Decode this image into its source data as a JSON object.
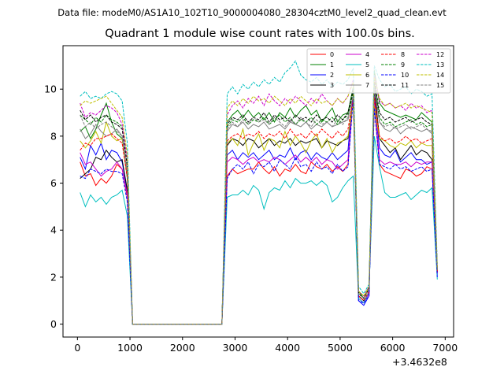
{
  "suptitle": "Data file: modeM0/AS1A10_102T10_9000004080_28304cztM0_level2_quad_clean.evt",
  "chart_data": {
    "type": "line",
    "title": "Quadrant 1 module wise count rates with 100.0s bins.",
    "xlabel": "",
    "ylabel": "",
    "x_offset_label": "+3.4632e8",
    "xlim": [
      -275,
      7160
    ],
    "ylim": [
      -0.55,
      11.85
    ],
    "xticks": [
      0,
      1000,
      2000,
      3000,
      4000,
      5000,
      6000,
      7000
    ],
    "yticks": [
      0,
      2,
      4,
      6,
      8,
      10
    ],
    "grid": false,
    "legend": "top-right, 4 columns",
    "x": [
      50,
      150,
      250,
      350,
      450,
      550,
      650,
      750,
      850,
      950,
      1050,
      1150,
      1250,
      1350,
      1450,
      1550,
      1650,
      1750,
      1850,
      1950,
      2050,
      2150,
      2250,
      2350,
      2450,
      2550,
      2650,
      2750,
      2850,
      2950,
      3050,
      3150,
      3250,
      3350,
      3450,
      3550,
      3650,
      3750,
      3850,
      3950,
      4050,
      4150,
      4250,
      4350,
      4450,
      4550,
      4650,
      4750,
      4850,
      4950,
      5050,
      5150,
      5250,
      5350,
      5450,
      5550,
      5650,
      5750,
      5850,
      5950,
      6050,
      6150,
      6250,
      6350,
      6450,
      6550,
      6650,
      6750,
      6850
    ],
    "series": [
      {
        "name": "0",
        "color": "#ff0000",
        "dash": false,
        "values": [
          6.9,
          6.3,
          6.4,
          5.9,
          6.2,
          6.0,
          6.3,
          6.8,
          6.6,
          5.4,
          0,
          0,
          0,
          0,
          0,
          0,
          0,
          0,
          0,
          0,
          0,
          0,
          0,
          0,
          0,
          0,
          0,
          0,
          6.3,
          6.6,
          6.4,
          6.5,
          6.6,
          6.6,
          6.9,
          6.6,
          6.4,
          6.7,
          6.3,
          6.6,
          6.5,
          6.8,
          6.5,
          6.4,
          6.9,
          6.7,
          6.6,
          6.8,
          6.5,
          6.7,
          6.5,
          6.8,
          9.8,
          1.2,
          1.0,
          1.3,
          9.4,
          6.8,
          6.5,
          6.4,
          6.3,
          6.2,
          6.6,
          6.5,
          6.3,
          6.4,
          6.7,
          6.6,
          2.2
        ]
      },
      {
        "name": "1",
        "color": "#008000",
        "dash": false,
        "values": [
          8.2,
          8.4,
          7.9,
          8.3,
          8.9,
          9.4,
          8.6,
          8.1,
          7.9,
          6.2,
          0,
          0,
          0,
          0,
          0,
          0,
          0,
          0,
          0,
          0,
          0,
          0,
          0,
          0,
          0,
          0,
          0,
          0,
          8.6,
          8.9,
          9.1,
          8.8,
          9.1,
          8.8,
          9.0,
          8.7,
          9.0,
          8.6,
          9.0,
          8.8,
          9.2,
          8.8,
          9.1,
          9.3,
          8.9,
          9.1,
          8.6,
          8.9,
          9.2,
          8.6,
          8.9,
          9.0,
          10.1,
          1.4,
          1.1,
          1.6,
          10.8,
          9.4,
          9.1,
          9.0,
          8.9,
          8.8,
          8.9,
          8.8,
          8.7,
          9.0,
          8.8,
          8.6,
          2.3
        ]
      },
      {
        "name": "2",
        "color": "#0000ff",
        "dash": false,
        "values": [
          7.1,
          6.6,
          7.6,
          7.2,
          7.7,
          7.0,
          7.4,
          7.3,
          6.9,
          5.6,
          0,
          0,
          0,
          0,
          0,
          0,
          0,
          0,
          0,
          0,
          0,
          0,
          0,
          0,
          0,
          0,
          0,
          0,
          7.2,
          7.4,
          7.0,
          7.3,
          7.1,
          7.3,
          7.0,
          7.2,
          7.4,
          7.0,
          7.2,
          7.1,
          7.5,
          7.0,
          7.3,
          7.4,
          7.0,
          7.3,
          7.1,
          7.0,
          7.3,
          7.0,
          7.2,
          7.4,
          9.9,
          1.0,
          0.8,
          1.2,
          9.8,
          7.5,
          7.2,
          7.1,
          7.4,
          6.9,
          7.1,
          7.3,
          7.0,
          7.0,
          6.8,
          6.9,
          2.1
        ]
      },
      {
        "name": "3",
        "color": "#000000",
        "dash": false,
        "values": [
          6.2,
          6.4,
          6.6,
          7.1,
          7.0,
          7.4,
          7.1,
          6.9,
          7.0,
          5.7,
          0,
          0,
          0,
          0,
          0,
          0,
          0,
          0,
          0,
          0,
          0,
          0,
          0,
          0,
          0,
          0,
          0,
          0,
          7.6,
          7.9,
          7.8,
          7.6,
          7.9,
          7.8,
          7.5,
          7.7,
          7.9,
          7.6,
          7.8,
          7.7,
          7.9,
          7.6,
          7.8,
          7.7,
          7.8,
          7.9,
          7.5,
          7.8,
          7.7,
          7.6,
          7.8,
          7.9,
          9.7,
          1.2,
          1.0,
          1.3,
          10.1,
          7.9,
          7.6,
          7.3,
          7.5,
          7.0,
          7.3,
          7.6,
          7.2,
          7.4,
          7.3,
          7.0,
          2.2
        ]
      },
      {
        "name": "4",
        "color": "#cc00cc",
        "dash": false,
        "values": [
          7.3,
          6.8,
          6.9,
          6.6,
          6.3,
          6.5,
          6.6,
          6.9,
          6.6,
          5.5,
          0,
          0,
          0,
          0,
          0,
          0,
          0,
          0,
          0,
          0,
          0,
          0,
          0,
          0,
          0,
          0,
          0,
          0,
          6.9,
          7.1,
          7.0,
          6.8,
          7.0,
          7.1,
          6.9,
          7.0,
          6.9,
          7.1,
          7.0,
          6.8,
          7.0,
          7.2,
          6.9,
          7.1,
          6.9,
          7.1,
          6.8,
          7.0,
          6.9,
          6.6,
          6.8,
          7.0,
          9.8,
          1.1,
          0.9,
          1.3,
          9.6,
          7.0,
          6.8,
          6.9,
          6.8,
          6.8,
          6.9,
          6.7,
          6.9,
          6.8,
          6.9,
          6.9,
          2.2
        ]
      },
      {
        "name": "5",
        "color": "#00bfbf",
        "dash": false,
        "values": [
          5.6,
          5.0,
          5.5,
          5.2,
          5.4,
          5.1,
          5.4,
          5.5,
          5.7,
          4.6,
          0,
          0,
          0,
          0,
          0,
          0,
          0,
          0,
          0,
          0,
          0,
          0,
          0,
          0,
          0,
          0,
          0,
          0,
          5.4,
          5.5,
          5.5,
          5.7,
          5.5,
          5.9,
          5.7,
          4.9,
          5.6,
          5.8,
          5.7,
          6.1,
          5.8,
          6.2,
          6.0,
          6.0,
          6.1,
          5.9,
          6.1,
          5.9,
          5.2,
          5.4,
          5.8,
          6.1,
          6.3,
          1.1,
          0.9,
          1.4,
          8.0,
          6.7,
          5.6,
          5.4,
          5.4,
          5.5,
          5.6,
          5.3,
          5.5,
          5.7,
          5.6,
          5.8,
          1.9
        ]
      },
      {
        "name": "6",
        "color": "#bfbf00",
        "dash": false,
        "values": [
          7.8,
          7.5,
          7.8,
          8.2,
          7.7,
          8.6,
          8.0,
          7.8,
          7.9,
          6.3,
          0,
          0,
          0,
          0,
          0,
          0,
          0,
          0,
          0,
          0,
          0,
          0,
          0,
          0,
          0,
          0,
          0,
          0,
          7.7,
          7.9,
          7.6,
          8.3,
          7.2,
          7.7,
          8.1,
          7.4,
          7.9,
          7.8,
          7.5,
          8.2,
          7.6,
          8.0,
          7.7,
          7.3,
          7.8,
          8.1,
          7.5,
          7.9,
          7.3,
          7.7,
          7.8,
          8.0,
          9.4,
          1.4,
          1.2,
          1.5,
          9.3,
          7.9,
          7.8,
          7.6,
          7.5,
          7.7,
          7.6,
          7.8,
          7.5,
          7.7,
          7.6,
          7.6,
          2.3
        ]
      },
      {
        "name": "7",
        "color": "#808080",
        "dash": false,
        "values": [
          8.3,
          7.9,
          8.1,
          8.5,
          8.2,
          8.0,
          8.1,
          8.3,
          8.0,
          6.4,
          0,
          0,
          0,
          0,
          0,
          0,
          0,
          0,
          0,
          0,
          0,
          0,
          0,
          0,
          0,
          0,
          0,
          0,
          8.2,
          8.5,
          8.4,
          8.6,
          8.3,
          8.5,
          8.4,
          8.6,
          8.3,
          8.4,
          8.5,
          8.3,
          8.6,
          8.5,
          8.4,
          8.6,
          8.3,
          8.5,
          8.4,
          8.6,
          8.4,
          8.5,
          8.6,
          8.7,
          9.8,
          1.3,
          1.1,
          1.5,
          10.2,
          8.6,
          8.3,
          8.2,
          8.4,
          8.1,
          8.3,
          8.4,
          8.3,
          8.2,
          8.3,
          8.1,
          2.3
        ]
      },
      {
        "name": "8",
        "color": "#ff0000",
        "dash": true,
        "values": [
          7.4,
          7.7,
          7.6,
          7.9,
          7.9,
          8.0,
          8.1,
          7.9,
          7.7,
          6.2,
          0,
          0,
          0,
          0,
          0,
          0,
          0,
          0,
          0,
          0,
          0,
          0,
          0,
          0,
          0,
          0,
          0,
          0,
          7.8,
          8.0,
          8.1,
          7.9,
          8.1,
          8.0,
          8.2,
          7.9,
          8.1,
          8.0,
          8.2,
          7.9,
          8.3,
          8.0,
          8.1,
          7.9,
          8.2,
          8.0,
          8.3,
          8.1,
          7.9,
          8.2,
          8.0,
          8.3,
          9.6,
          1.2,
          1.0,
          1.4,
          9.7,
          8.0,
          7.8,
          7.9,
          7.7,
          7.8,
          8.0,
          7.8,
          7.9,
          7.7,
          7.8,
          7.9,
          2.2
        ]
      },
      {
        "name": "9",
        "color": "#008000",
        "dash": true,
        "values": [
          8.9,
          8.7,
          8.5,
          8.8,
          8.6,
          8.9,
          8.7,
          8.6,
          8.4,
          6.8,
          0,
          0,
          0,
          0,
          0,
          0,
          0,
          0,
          0,
          0,
          0,
          0,
          0,
          0,
          0,
          0,
          0,
          0,
          8.4,
          8.7,
          8.6,
          8.8,
          8.5,
          8.7,
          8.6,
          8.8,
          8.5,
          8.7,
          8.9,
          8.6,
          8.8,
          8.5,
          8.7,
          8.6,
          8.8,
          8.5,
          8.7,
          8.6,
          8.8,
          8.5,
          8.7,
          8.9,
          9.9,
          1.3,
          1.1,
          1.5,
          10.3,
          8.8,
          8.5,
          8.6,
          8.4,
          8.5,
          8.6,
          8.7,
          8.5,
          8.6,
          8.4,
          8.5,
          2.3
        ]
      },
      {
        "name": "10",
        "color": "#0000ff",
        "dash": true,
        "values": [
          6.3,
          6.2,
          6.6,
          6.5,
          6.4,
          6.6,
          6.5,
          6.5,
          6.4,
          5.2,
          0,
          0,
          0,
          0,
          0,
          0,
          0,
          0,
          0,
          0,
          0,
          0,
          0,
          0,
          0,
          0,
          0,
          0,
          6.2,
          6.6,
          6.8,
          6.6,
          6.9,
          6.4,
          6.8,
          6.7,
          6.9,
          6.5,
          7.0,
          6.8,
          6.6,
          7.1,
          6.7,
          6.8,
          6.5,
          6.9,
          6.6,
          6.7,
          6.4,
          6.8,
          6.5,
          6.7,
          9.6,
          1.0,
          0.9,
          1.2,
          9.2,
          6.8,
          6.7,
          6.6,
          6.8,
          6.6,
          6.7,
          6.5,
          6.6,
          6.7,
          6.5,
          6.6,
          2.0
        ]
      },
      {
        "name": "11",
        "color": "#000000",
        "dash": true,
        "values": [
          9.1,
          8.7,
          8.9,
          8.6,
          8.8,
          8.9,
          8.6,
          8.5,
          8.3,
          6.7,
          0,
          0,
          0,
          0,
          0,
          0,
          0,
          0,
          0,
          0,
          0,
          0,
          0,
          0,
          0,
          0,
          0,
          0,
          8.5,
          8.8,
          8.7,
          8.9,
          8.6,
          8.8,
          8.7,
          9.0,
          8.6,
          8.9,
          8.7,
          8.8,
          8.6,
          8.9,
          8.7,
          8.8,
          8.6,
          8.9,
          8.7,
          8.8,
          8.6,
          8.9,
          8.7,
          9.0,
          10.0,
          1.3,
          1.1,
          1.5,
          10.4,
          9.0,
          8.7,
          8.8,
          8.6,
          8.7,
          8.8,
          8.6,
          8.7,
          8.8,
          8.6,
          8.5,
          2.4
        ]
      },
      {
        "name": "12",
        "color": "#cc00cc",
        "dash": true,
        "values": [
          9.4,
          8.8,
          9.0,
          8.9,
          9.1,
          9.3,
          9.2,
          9.0,
          8.5,
          7.0,
          0,
          0,
          0,
          0,
          0,
          0,
          0,
          0,
          0,
          0,
          0,
          0,
          0,
          0,
          0,
          0,
          0,
          0,
          8.9,
          9.3,
          9.5,
          9.2,
          9.6,
          9.4,
          9.7,
          9.3,
          9.8,
          9.5,
          9.3,
          9.6,
          9.4,
          9.7,
          9.5,
          9.3,
          9.6,
          9.4,
          9.8,
          9.5,
          9.3,
          9.6,
          9.4,
          9.7,
          10.4,
          1.4,
          1.2,
          1.6,
          10.6,
          9.5,
          9.3,
          9.4,
          9.2,
          9.3,
          9.1,
          9.4,
          9.2,
          9.3,
          9.0,
          9.1,
          2.4
        ]
      },
      {
        "name": "13",
        "color": "#00bfbf",
        "dash": true,
        "values": [
          9.7,
          9.9,
          9.6,
          9.7,
          9.6,
          9.8,
          9.9,
          9.8,
          9.5,
          7.7,
          0,
          0,
          0,
          0,
          0,
          0,
          0,
          0,
          0,
          0,
          0,
          0,
          0,
          0,
          0,
          0,
          0,
          0,
          9.8,
          10.1,
          9.8,
          10.2,
          10.0,
          10.3,
          10.1,
          10.4,
          10.2,
          10.5,
          10.3,
          10.7,
          10.9,
          11.2,
          10.6,
          10.4,
          10.3,
          10.5,
          10.2,
          10.4,
          10.1,
          10.3,
          10.2,
          10.4,
          10.9,
          1.6,
          1.3,
          1.7,
          11.0,
          10.4,
          10.1,
          10.2,
          9.9,
          10.0,
          10.1,
          9.8,
          10.0,
          9.9,
          9.7,
          9.8,
          2.5
        ]
      },
      {
        "name": "14",
        "color": "#bfbf00",
        "dash": true,
        "values": [
          9.3,
          9.5,
          9.4,
          9.5,
          9.6,
          9.7,
          9.4,
          9.1,
          8.8,
          7.2,
          0,
          0,
          0,
          0,
          0,
          0,
          0,
          0,
          0,
          0,
          0,
          0,
          0,
          0,
          0,
          0,
          0,
          0,
          9.2,
          9.5,
          9.3,
          9.6,
          9.4,
          9.7,
          9.5,
          9.6,
          9.4,
          9.7,
          9.5,
          9.3,
          9.6,
          9.4,
          9.7,
          9.5,
          9.3,
          9.6,
          9.4,
          9.5,
          9.3,
          9.6,
          9.4,
          9.7,
          10.3,
          1.4,
          1.2,
          1.6,
          10.5,
          9.6,
          9.3,
          9.4,
          9.2,
          9.3,
          9.4,
          9.2,
          9.3,
          9.2,
          9.1,
          9.0,
          2.4
        ]
      },
      {
        "name": "15",
        "color": "#808080",
        "dash": true,
        "values": [
          8.9,
          8.4,
          8.6,
          8.3,
          8.5,
          8.6,
          8.4,
          8.2,
          8.0,
          6.5,
          0,
          0,
          0,
          0,
          0,
          0,
          0,
          0,
          0,
          0,
          0,
          0,
          0,
          0,
          0,
          0,
          0,
          0,
          8.3,
          8.6,
          8.4,
          8.7,
          8.5,
          8.8,
          8.6,
          8.7,
          8.5,
          8.8,
          8.6,
          8.4,
          8.7,
          8.5,
          8.8,
          8.6,
          8.4,
          8.7,
          8.5,
          8.6,
          8.4,
          8.7,
          8.5,
          8.8,
          9.7,
          1.3,
          1.1,
          1.5,
          10.0,
          8.6,
          8.4,
          8.5,
          8.3,
          8.4,
          8.5,
          8.3,
          8.4,
          8.5,
          8.3,
          8.2,
          2.3
        ]
      }
    ]
  }
}
